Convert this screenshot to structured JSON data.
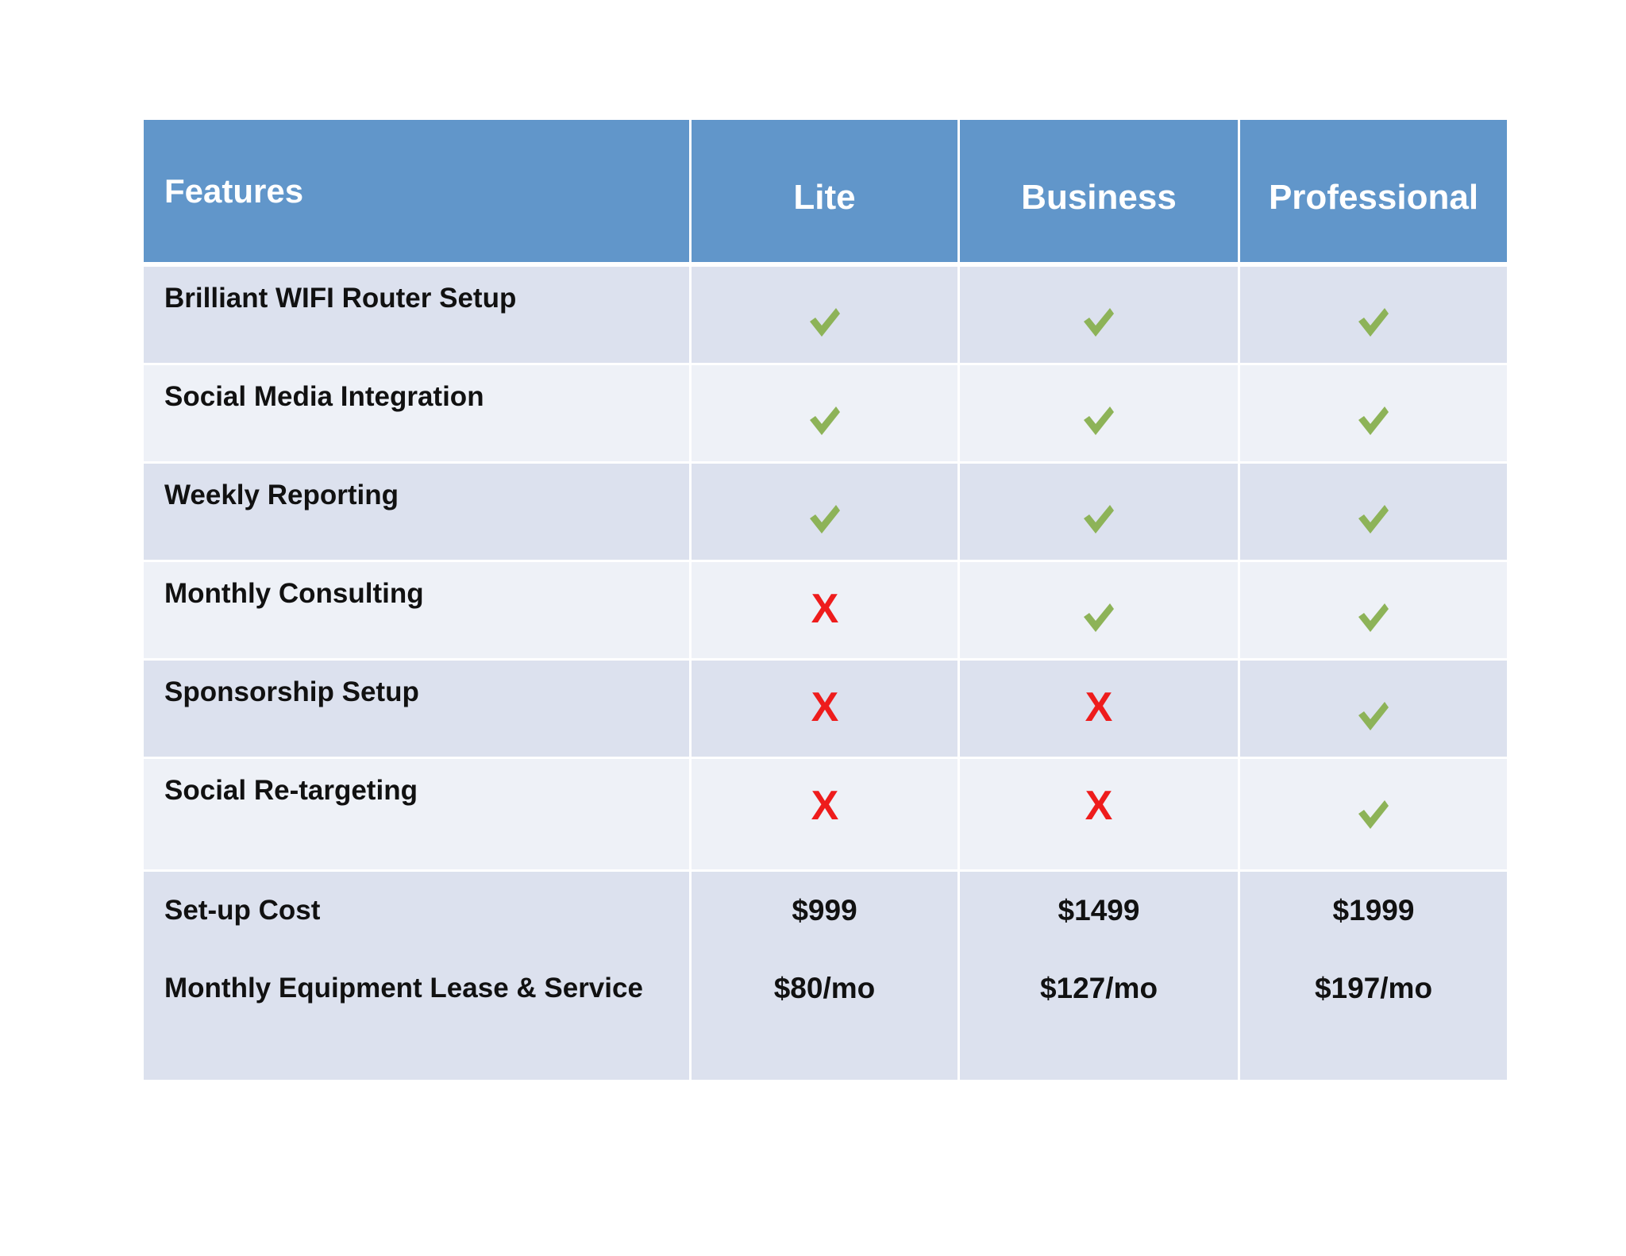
{
  "table": {
    "header": {
      "features": "Features",
      "tiers": [
        "Lite",
        "Business",
        "Professional"
      ]
    },
    "rows": [
      {
        "feature": "Brilliant WIFI Router Setup",
        "marks": [
          "check",
          "check",
          "check"
        ]
      },
      {
        "feature": "Social Media Integration",
        "marks": [
          "check",
          "check",
          "check"
        ]
      },
      {
        "feature": "Weekly Reporting",
        "marks": [
          "check",
          "check",
          "check"
        ]
      },
      {
        "feature": "Monthly Consulting",
        "marks": [
          "cross",
          "check",
          "check"
        ]
      },
      {
        "feature": "Sponsorship Setup",
        "marks": [
          "cross",
          "cross",
          "check"
        ]
      },
      {
        "feature": "Social Re-targeting",
        "marks": [
          "cross",
          "cross",
          "check"
        ]
      }
    ],
    "cross_text": "X",
    "pricing": {
      "setup_label": "Set-up Cost",
      "monthly_label": "Monthly Equipment Lease & Service",
      "setup": [
        "$999",
        "$1499",
        "$1999"
      ],
      "monthly": [
        "$80/mo",
        "$127/mo",
        "$197/mo"
      ]
    }
  },
  "colors": {
    "header_bg": "#6196ca",
    "row_dark": "#dce1ee",
    "row_light": "#eef1f7",
    "check": "#8db358",
    "cross": "#ee1c1c"
  }
}
